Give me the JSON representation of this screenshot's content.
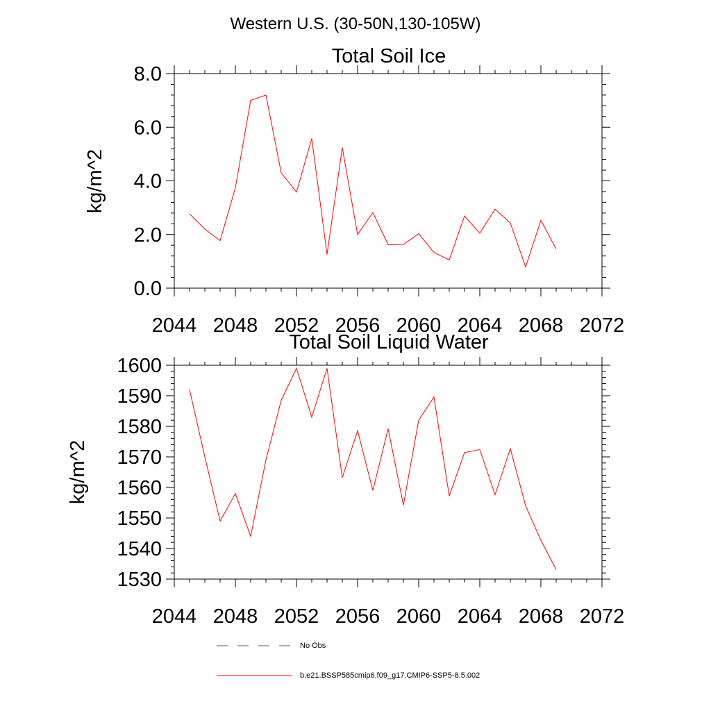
{
  "figure": {
    "title": "Western U.S. (30-50N,130-105W)"
  },
  "chart_data": [
    {
      "type": "line",
      "title": "Total Soil Ice",
      "xlabel": "",
      "ylabel": "kg/m^2",
      "xlim": [
        2044,
        2072
      ],
      "ylim": [
        0,
        8
      ],
      "xticks": [
        2044,
        2048,
        2052,
        2056,
        2060,
        2064,
        2068,
        2072
      ],
      "yticks": [
        0,
        2,
        4,
        6,
        8
      ],
      "ytick_labels": [
        "0.0",
        "2.0",
        "4.0",
        "6.0",
        "8.0"
      ],
      "grid": false,
      "series": [
        {
          "name": "b.e21.BSSP585cmip6.f09_g17.CMIP6-SSP5-8.5.002",
          "color": "#ff0000",
          "x": [
            2045,
            2046,
            2047,
            2048,
            2049,
            2050,
            2051,
            2052,
            2053,
            2054,
            2055,
            2056,
            2057,
            2058,
            2059,
            2060,
            2061,
            2062,
            2063,
            2064,
            2065,
            2066,
            2067,
            2068,
            2069
          ],
          "values": [
            2.77,
            2.2,
            1.77,
            3.74,
            7.0,
            7.2,
            4.3,
            3.58,
            5.58,
            1.26,
            5.24,
            2.0,
            2.82,
            1.62,
            1.63,
            2.03,
            1.33,
            1.05,
            2.69,
            2.05,
            2.95,
            2.43,
            0.79,
            2.53,
            1.46
          ]
        }
      ]
    },
    {
      "type": "line",
      "title": "Total Soil Liquid Water",
      "xlabel": "",
      "ylabel": "kg/m^2",
      "xlim": [
        2044,
        2072
      ],
      "ylim": [
        1530,
        1600
      ],
      "xticks": [
        2044,
        2048,
        2052,
        2056,
        2060,
        2064,
        2068,
        2072
      ],
      "yticks": [
        1530,
        1540,
        1550,
        1560,
        1570,
        1580,
        1590,
        1600
      ],
      "ytick_labels": [
        "1530",
        "1540",
        "1550",
        "1560",
        "1570",
        "1580",
        "1590",
        "1600"
      ],
      "grid": false,
      "series": [
        {
          "name": "b.e21.BSSP585cmip6.f09_g17.CMIP6-SSP5-8.5.002",
          "color": "#ff0000",
          "x": [
            2045,
            2046,
            2047,
            2048,
            2049,
            2050,
            2051,
            2052,
            2053,
            2054,
            2055,
            2056,
            2057,
            2058,
            2059,
            2060,
            2061,
            2062,
            2063,
            2064,
            2065,
            2066,
            2067,
            2068,
            2069
          ],
          "values": [
            1592,
            1570,
            1549,
            1558,
            1544,
            1569,
            1588.5,
            1599,
            1583,
            1599,
            1563.2,
            1578.6,
            1559,
            1579.2,
            1554.2,
            1582,
            1589.6,
            1557.2,
            1571.4,
            1572.4,
            1557.6,
            1572.7,
            1554,
            1542.7,
            1533.1
          ]
        }
      ]
    }
  ],
  "legend": {
    "placement": "bottom",
    "entries": [
      {
        "label": "No Obs",
        "style": "dashed",
        "color": "#4a5a8c"
      },
      {
        "label": "b.e21.BSSP585cmip6.f09_g17.CMIP6-SSP5-8.5.002",
        "style": "solid",
        "color": "#ff0000"
      }
    ]
  }
}
